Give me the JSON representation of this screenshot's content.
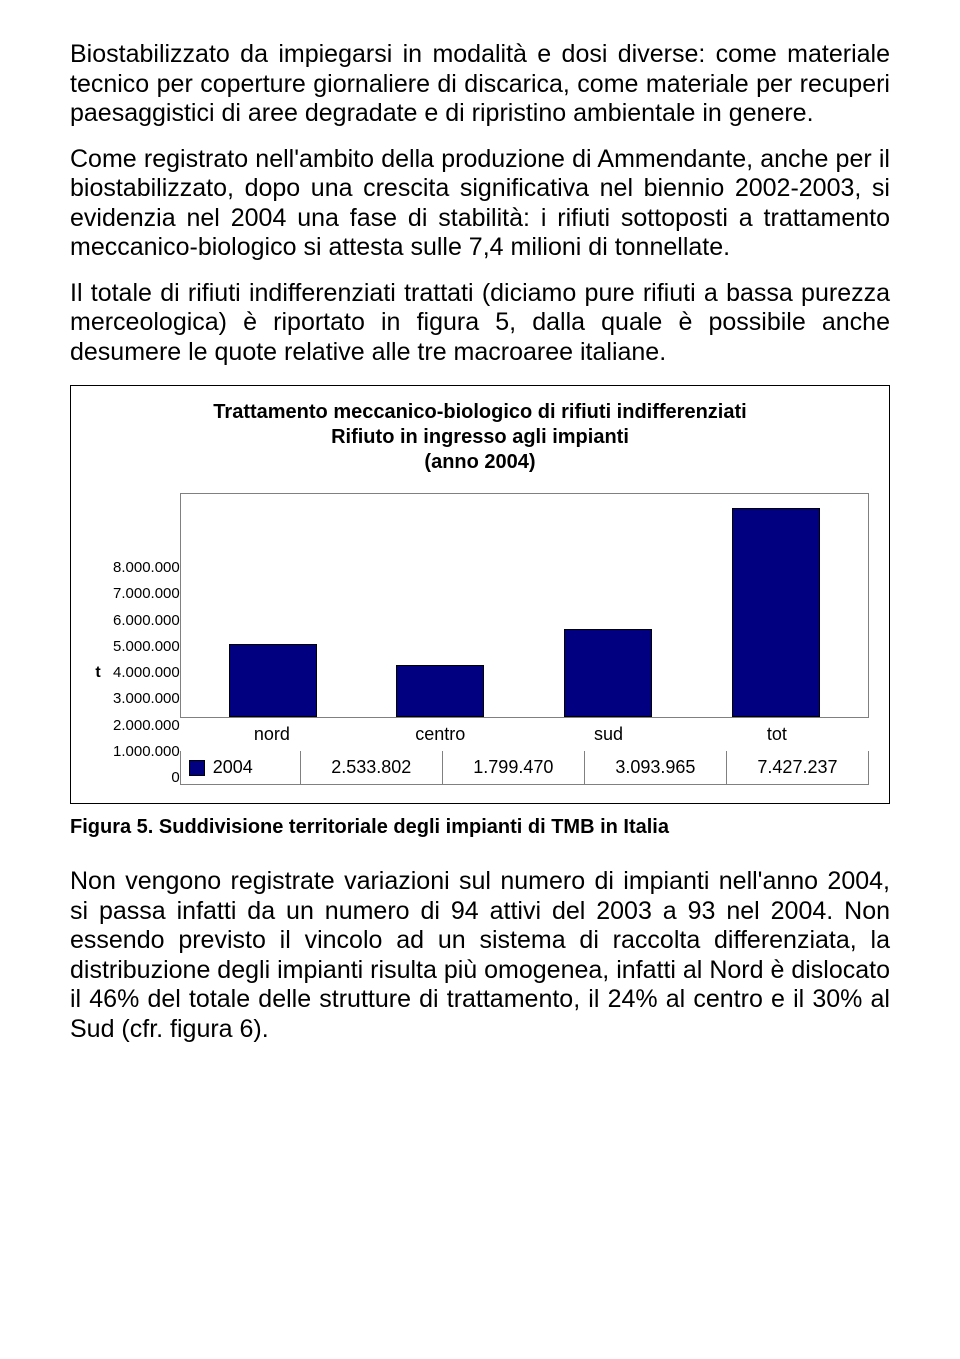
{
  "paragraphs": {
    "p1": "Biostabilizzato da impiegarsi in modalità e dosi diverse: come materiale tecnico per coperture giornaliere di discarica, come materiale per recuperi paesaggistici di aree degradate e di ripristino ambientale in genere.",
    "p2": "Come registrato nell'ambito della produzione di Ammendante, anche per il biostabilizzato, dopo una crescita significativa nel biennio 2002-2003, si evidenzia nel 2004 una fase di stabilità: i rifiuti sottoposti a trattamento meccanico-biologico si attesta sulle 7,4 milioni di tonnellate.",
    "p3": "Il totale di rifiuti indifferenziati trattati (diciamo pure rifiuti a bassa purezza merceologica) è riportato in figura 5, dalla quale è possibile anche desumere le quote relative alle tre macroaree italiane.",
    "p4": "Non vengono registrate variazioni sul numero di impianti nell'anno 2004, si passa infatti da un numero di 94 attivi del 2003 a 93 nel 2004. Non essendo previsto il vincolo ad un sistema di raccolta differenziata, la distribuzione degli impianti risulta più omogenea, infatti al Nord è dislocato il 46% del totale delle strutture di trattamento, il 24% al centro e il 30% al Sud (cfr. figura 6)."
  },
  "chart": {
    "type": "bar",
    "title_line1": "Trattamento meccanico-biologico di rifiuti indifferenziati",
    "title_line2": "Rifiuto in ingresso agli impianti",
    "title_line3": "(anno 2004)",
    "ylabel": "t",
    "yticks": [
      "8.000.000",
      "7.000.000",
      "6.000.000",
      "5.000.000",
      "4.000.000",
      "3.000.000",
      "2.000.000",
      "1.000.000",
      "0"
    ],
    "ymax": 8000000,
    "categories": [
      "nord",
      "centro",
      "sud",
      "tot"
    ],
    "values": [
      2533802,
      1799470,
      3093965,
      7427237
    ],
    "value_labels": [
      "2.533.802",
      "1.799.470",
      "3.093.965",
      "7.427.237"
    ],
    "bar_color": "#000080",
    "bar_border": "#000000",
    "plot_bg": "#ffffff",
    "grid_color": "#808080",
    "legend_year": "2004"
  },
  "caption": {
    "prefix": "Figura 5. ",
    "text": "Suddivisione territoriale degli impianti di TMB in Italia"
  }
}
